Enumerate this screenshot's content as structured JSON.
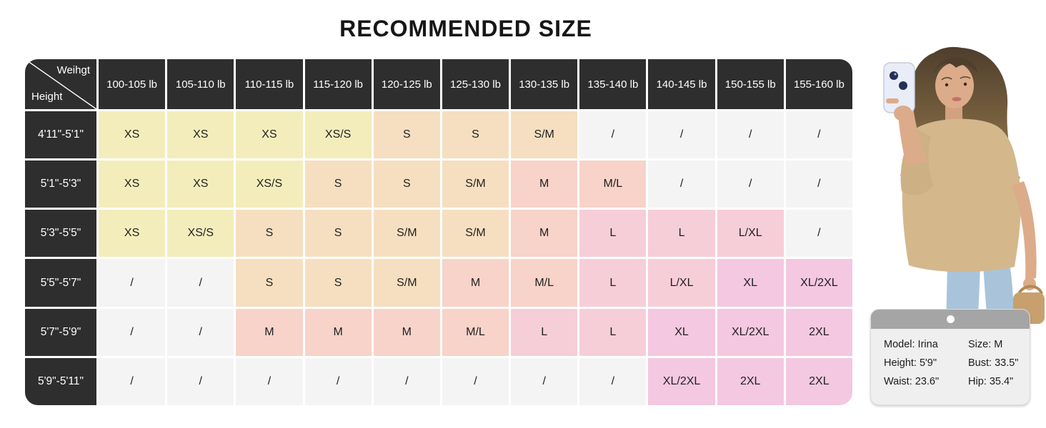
{
  "title": "RECOMMENDED SIZE",
  "table": {
    "corner_top": "Weihgt",
    "corner_bottom": "Height",
    "weight_headers": [
      "100-105 lb",
      "105-110 lb",
      "110-115 lb",
      "115-120 lb",
      "120-125 lb",
      "125-130 lb",
      "130-135 lb",
      "135-140 lb",
      "140-145 lb",
      "150-155 lb",
      "155-160 lb"
    ],
    "rows": [
      {
        "height": "4'11\"-5'1\"",
        "cells": [
          {
            "v": "XS",
            "k": "xs"
          },
          {
            "v": "XS",
            "k": "xs"
          },
          {
            "v": "XS",
            "k": "xs"
          },
          {
            "v": "XS/S",
            "k": "xs"
          },
          {
            "v": "S",
            "k": "s"
          },
          {
            "v": "S",
            "k": "s"
          },
          {
            "v": "S/M",
            "k": "s"
          },
          {
            "v": "/",
            "k": "na"
          },
          {
            "v": "/",
            "k": "na"
          },
          {
            "v": "/",
            "k": "na"
          },
          {
            "v": "/",
            "k": "na"
          }
        ]
      },
      {
        "height": "5'1\"-5'3\"",
        "cells": [
          {
            "v": "XS",
            "k": "xs"
          },
          {
            "v": "XS",
            "k": "xs"
          },
          {
            "v": "XS/S",
            "k": "xs"
          },
          {
            "v": "S",
            "k": "s"
          },
          {
            "v": "S",
            "k": "s"
          },
          {
            "v": "S/M",
            "k": "s"
          },
          {
            "v": "M",
            "k": "m"
          },
          {
            "v": "M/L",
            "k": "m"
          },
          {
            "v": "/",
            "k": "na"
          },
          {
            "v": "/",
            "k": "na"
          },
          {
            "v": "/",
            "k": "na"
          }
        ]
      },
      {
        "height": "5'3\"-5'5\"",
        "cells": [
          {
            "v": "XS",
            "k": "xs"
          },
          {
            "v": "XS/S",
            "k": "xs"
          },
          {
            "v": "S",
            "k": "s"
          },
          {
            "v": "S",
            "k": "s"
          },
          {
            "v": "S/M",
            "k": "s"
          },
          {
            "v": "S/M",
            "k": "s"
          },
          {
            "v": "M",
            "k": "m"
          },
          {
            "v": "L",
            "k": "l"
          },
          {
            "v": "L",
            "k": "l"
          },
          {
            "v": "L/XL",
            "k": "l"
          },
          {
            "v": "/",
            "k": "na"
          }
        ]
      },
      {
        "height": "5'5\"-5'7\"",
        "cells": [
          {
            "v": "/",
            "k": "na"
          },
          {
            "v": "/",
            "k": "na"
          },
          {
            "v": "S",
            "k": "s"
          },
          {
            "v": "S",
            "k": "s"
          },
          {
            "v": "S/M",
            "k": "s"
          },
          {
            "v": "M",
            "k": "m"
          },
          {
            "v": "M/L",
            "k": "m"
          },
          {
            "v": "L",
            "k": "l"
          },
          {
            "v": "L/XL",
            "k": "l"
          },
          {
            "v": "XL",
            "k": "xl"
          },
          {
            "v": "XL/2XL",
            "k": "xl"
          }
        ]
      },
      {
        "height": "5'7\"-5'9\"",
        "cells": [
          {
            "v": "/",
            "k": "na"
          },
          {
            "v": "/",
            "k": "na"
          },
          {
            "v": "M",
            "k": "m"
          },
          {
            "v": "M",
            "k": "m"
          },
          {
            "v": "M",
            "k": "m"
          },
          {
            "v": "M/L",
            "k": "m"
          },
          {
            "v": "L",
            "k": "l"
          },
          {
            "v": "L",
            "k": "l"
          },
          {
            "v": "XL",
            "k": "xl"
          },
          {
            "v": "XL/2XL",
            "k": "xl"
          },
          {
            "v": "2XL",
            "k": "xl"
          }
        ]
      },
      {
        "height": "5'9\"-5'11\"",
        "cells": [
          {
            "v": "/",
            "k": "na"
          },
          {
            "v": "/",
            "k": "na"
          },
          {
            "v": "/",
            "k": "na"
          },
          {
            "v": "/",
            "k": "na"
          },
          {
            "v": "/",
            "k": "na"
          },
          {
            "v": "/",
            "k": "na"
          },
          {
            "v": "/",
            "k": "na"
          },
          {
            "v": "/",
            "k": "na"
          },
          {
            "v": "XL/2XL",
            "k": "xl"
          },
          {
            "v": "2XL",
            "k": "xl"
          },
          {
            "v": "2XL",
            "k": "xl"
          }
        ]
      }
    ]
  },
  "chart_data": {
    "type": "table",
    "title": "RECOMMENDED SIZE",
    "corner_labels": [
      "Weihgt",
      "Height"
    ],
    "columns": [
      "100-105 lb",
      "105-110 lb",
      "110-115 lb",
      "115-120 lb",
      "120-125 lb",
      "125-130 lb",
      "130-135 lb",
      "135-140 lb",
      "140-145 lb",
      "150-155 lb",
      "155-160 lb"
    ],
    "row_labels": [
      "4'11\"-5'1\"",
      "5'1\"-5'3\"",
      "5'3\"-5'5\"",
      "5'5\"-5'7\"",
      "5'7\"-5'9\"",
      "5'9\"-5'11\""
    ],
    "values": [
      [
        "XS",
        "XS",
        "XS",
        "XS/S",
        "S",
        "S",
        "S/M",
        "/",
        "/",
        "/",
        "/"
      ],
      [
        "XS",
        "XS",
        "XS/S",
        "S",
        "S",
        "S/M",
        "M",
        "M/L",
        "/",
        "/",
        "/"
      ],
      [
        "XS",
        "XS/S",
        "S",
        "S",
        "S/M",
        "S/M",
        "M",
        "L",
        "L",
        "L/XL",
        "/"
      ],
      [
        "/",
        "/",
        "S",
        "S",
        "S/M",
        "M",
        "M/L",
        "L",
        "L/XL",
        "XL",
        "XL/2XL"
      ],
      [
        "/",
        "/",
        "M",
        "M",
        "M",
        "M/L",
        "L",
        "L",
        "XL",
        "XL/2XL",
        "2XL"
      ],
      [
        "/",
        "/",
        "/",
        "/",
        "/",
        "/",
        "/",
        "/",
        "XL/2XL",
        "2XL",
        "2XL"
      ]
    ]
  },
  "model_card": {
    "model": "Model: Irina",
    "size": "Size: M",
    "height": "Height: 5'9\"",
    "bust": "Bust: 33.5\"",
    "waist": "Waist: 23.6\"",
    "hip": "Hip: 35.4\""
  },
  "colors": {
    "header_bg": "#2e2e2e",
    "header_text": "#ffffff",
    "xs": "#f3edbc",
    "s": "#f5dfc0",
    "m": "#f7d3c9",
    "l": "#f6ced8",
    "xl": "#f3c8e0",
    "na": "#f4f4f4",
    "grid_line": "#ffffff",
    "card_header": "#a5a5a5",
    "card_body": "#efefef",
    "shirt": "#d4b88c",
    "jeans": "#a9c4da"
  }
}
